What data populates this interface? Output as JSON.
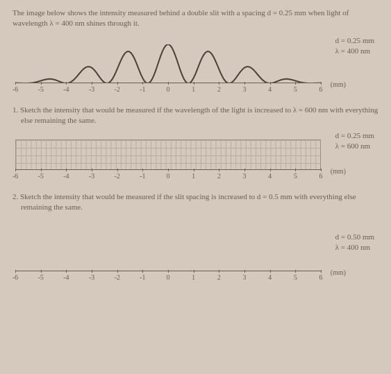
{
  "intro": "The image below shows the intensity measured behind a double slit with a spacing d = 0.25 mm when light of wavelength λ = 400 nm shines through it.",
  "axis": {
    "ticks": [
      "-6",
      "-5",
      "-4",
      "-3",
      "-2",
      "-1",
      "0",
      "1",
      "2",
      "3",
      "4",
      "5",
      "6"
    ],
    "unit_label": "(mm)",
    "xmin": -6,
    "xmax": 6
  },
  "graph_style": {
    "axis_color": "#6b5d52",
    "grid_color": "#b8ac9e",
    "background": "#d4c9bc",
    "font_family": "Georgia",
    "tick_fontsize": 10,
    "param_fontsize": 11
  },
  "block0": {
    "params_line1": "d = 0.25 mm",
    "params_line2": "λ = 400 nm",
    "pattern": {
      "type": "double-slit-intensity",
      "fringe_spacing_mm": 1.6,
      "envelope_first_min_mm": 6.5,
      "stroke": "#4a3f36",
      "stroke_width": 2
    }
  },
  "q1": {
    "text": "1. Sketch the intensity that would be measured if the wavelength of the light is increased to λ = 600 nm with everything else remaining the same.",
    "params_line1": "d = 0.25 mm",
    "params_line2": "λ = 600 nm",
    "grid": {
      "rows": 4,
      "cols_per_mm": 5
    }
  },
  "q2": {
    "text": "2. Sketch the intensity that would be measured if the slit spacing is increased to d = 0.5 mm with everything else remaining the same.",
    "params_line1": "d = 0.50 mm",
    "params_line2": "λ = 400 nm"
  }
}
